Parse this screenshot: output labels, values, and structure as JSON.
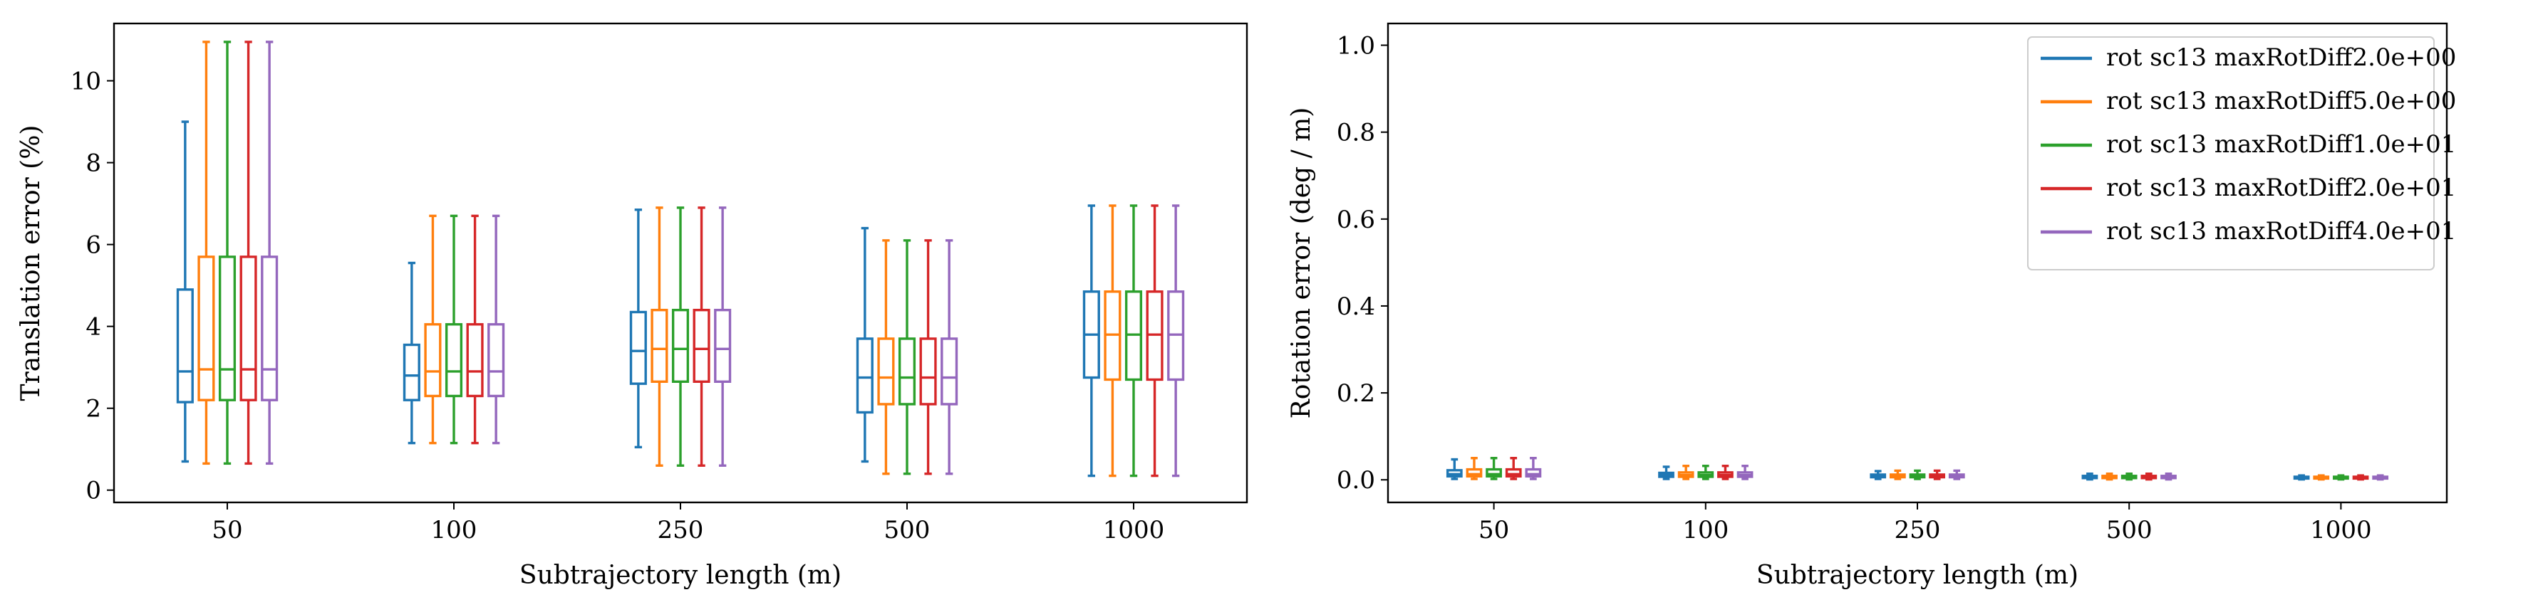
{
  "chart_data": [
    {
      "type": "box",
      "xlabel": "Subtrajectory length (m)",
      "ylabel": "Translation error (%)",
      "ylim": [
        -0.3,
        11.4
      ],
      "yticks": [
        0,
        2,
        4,
        6,
        8,
        10
      ],
      "categories": [
        "50",
        "100",
        "250",
        "500",
        "1000"
      ],
      "grid": false,
      "series": [
        {
          "name": "rot sc13 maxRotDiff2.0e+00",
          "color": "#1f77b4",
          "boxes": [
            {
              "whislo": 0.7,
              "q1": 2.15,
              "med": 2.9,
              "q3": 4.9,
              "whishi": 9.0
            },
            {
              "whislo": 1.15,
              "q1": 2.2,
              "med": 2.8,
              "q3": 3.55,
              "whishi": 5.55
            },
            {
              "whislo": 1.05,
              "q1": 2.6,
              "med": 3.4,
              "q3": 4.35,
              "whishi": 6.85
            },
            {
              "whislo": 0.7,
              "q1": 1.9,
              "med": 2.75,
              "q3": 3.7,
              "whishi": 6.4
            },
            {
              "whislo": 0.35,
              "q1": 2.75,
              "med": 3.8,
              "q3": 4.85,
              "whishi": 6.95
            }
          ]
        },
        {
          "name": "rot sc13 maxRotDiff5.0e+00",
          "color": "#ff7f0e",
          "boxes": [
            {
              "whislo": 0.65,
              "q1": 2.2,
              "med": 2.95,
              "q3": 5.7,
              "whishi": 10.95
            },
            {
              "whislo": 1.15,
              "q1": 2.3,
              "med": 2.9,
              "q3": 4.05,
              "whishi": 6.7
            },
            {
              "whislo": 0.6,
              "q1": 2.65,
              "med": 3.45,
              "q3": 4.4,
              "whishi": 6.9
            },
            {
              "whislo": 0.4,
              "q1": 2.1,
              "med": 2.75,
              "q3": 3.7,
              "whishi": 6.1
            },
            {
              "whislo": 0.35,
              "q1": 2.7,
              "med": 3.8,
              "q3": 4.85,
              "whishi": 6.95
            }
          ]
        },
        {
          "name": "rot sc13 maxRotDiff1.0e+01",
          "color": "#2ca02c",
          "boxes": [
            {
              "whislo": 0.65,
              "q1": 2.2,
              "med": 2.95,
              "q3": 5.7,
              "whishi": 10.95
            },
            {
              "whislo": 1.15,
              "q1": 2.3,
              "med": 2.9,
              "q3": 4.05,
              "whishi": 6.7
            },
            {
              "whislo": 0.6,
              "q1": 2.65,
              "med": 3.45,
              "q3": 4.4,
              "whishi": 6.9
            },
            {
              "whislo": 0.4,
              "q1": 2.1,
              "med": 2.75,
              "q3": 3.7,
              "whishi": 6.1
            },
            {
              "whislo": 0.35,
              "q1": 2.7,
              "med": 3.8,
              "q3": 4.85,
              "whishi": 6.95
            }
          ]
        },
        {
          "name": "rot sc13 maxRotDiff2.0e+01",
          "color": "#d62728",
          "boxes": [
            {
              "whislo": 0.65,
              "q1": 2.2,
              "med": 2.95,
              "q3": 5.7,
              "whishi": 10.95
            },
            {
              "whislo": 1.15,
              "q1": 2.3,
              "med": 2.9,
              "q3": 4.05,
              "whishi": 6.7
            },
            {
              "whislo": 0.6,
              "q1": 2.65,
              "med": 3.45,
              "q3": 4.4,
              "whishi": 6.9
            },
            {
              "whislo": 0.4,
              "q1": 2.1,
              "med": 2.75,
              "q3": 3.7,
              "whishi": 6.1
            },
            {
              "whislo": 0.35,
              "q1": 2.7,
              "med": 3.8,
              "q3": 4.85,
              "whishi": 6.95
            }
          ]
        },
        {
          "name": "rot sc13 maxRotDiff4.0e+01",
          "color": "#9467bd",
          "boxes": [
            {
              "whislo": 0.65,
              "q1": 2.2,
              "med": 2.95,
              "q3": 5.7,
              "whishi": 10.95
            },
            {
              "whislo": 1.15,
              "q1": 2.3,
              "med": 2.9,
              "q3": 4.05,
              "whishi": 6.7
            },
            {
              "whislo": 0.6,
              "q1": 2.65,
              "med": 3.45,
              "q3": 4.4,
              "whishi": 6.9
            },
            {
              "whislo": 0.4,
              "q1": 2.1,
              "med": 2.75,
              "q3": 3.7,
              "whishi": 6.1
            },
            {
              "whislo": 0.35,
              "q1": 2.7,
              "med": 3.8,
              "q3": 4.85,
              "whishi": 6.95
            }
          ]
        }
      ]
    },
    {
      "type": "box",
      "xlabel": "Subtrajectory length (m)",
      "ylabel": "Rotation error (deg / m)",
      "ylim": [
        -0.052,
        1.05
      ],
      "yticks": [
        0.0,
        0.2,
        0.4,
        0.6,
        0.8,
        1.0
      ],
      "categories": [
        "50",
        "100",
        "250",
        "500",
        "1000"
      ],
      "grid": false,
      "legend": "top-right",
      "series": [
        {
          "name": "rot sc13 maxRotDiff2.0e+00",
          "color": "#1f77b4",
          "boxes": [
            {
              "whislo": 0.002,
              "q1": 0.008,
              "med": 0.013,
              "q3": 0.022,
              "whishi": 0.047
            },
            {
              "whislo": 0.002,
              "q1": 0.007,
              "med": 0.011,
              "q3": 0.016,
              "whishi": 0.03
            },
            {
              "whislo": 0.002,
              "q1": 0.006,
              "med": 0.009,
              "q3": 0.012,
              "whishi": 0.02
            },
            {
              "whislo": 0.001,
              "q1": 0.004,
              "med": 0.006,
              "q3": 0.009,
              "whishi": 0.014
            },
            {
              "whislo": 0.001,
              "q1": 0.003,
              "med": 0.005,
              "q3": 0.007,
              "whishi": 0.01
            }
          ]
        },
        {
          "name": "rot sc13 maxRotDiff5.0e+00",
          "color": "#ff7f0e",
          "boxes": [
            {
              "whislo": 0.002,
              "q1": 0.008,
              "med": 0.013,
              "q3": 0.024,
              "whishi": 0.05
            },
            {
              "whislo": 0.002,
              "q1": 0.007,
              "med": 0.011,
              "q3": 0.017,
              "whishi": 0.032
            },
            {
              "whislo": 0.002,
              "q1": 0.006,
              "med": 0.009,
              "q3": 0.012,
              "whishi": 0.021
            },
            {
              "whislo": 0.001,
              "q1": 0.004,
              "med": 0.006,
              "q3": 0.009,
              "whishi": 0.014
            },
            {
              "whislo": 0.001,
              "q1": 0.003,
              "med": 0.005,
              "q3": 0.007,
              "whishi": 0.01
            }
          ]
        },
        {
          "name": "rot sc13 maxRotDiff1.0e+01",
          "color": "#2ca02c",
          "boxes": [
            {
              "whislo": 0.002,
              "q1": 0.008,
              "med": 0.013,
              "q3": 0.024,
              "whishi": 0.05
            },
            {
              "whislo": 0.002,
              "q1": 0.007,
              "med": 0.011,
              "q3": 0.017,
              "whishi": 0.032
            },
            {
              "whislo": 0.002,
              "q1": 0.006,
              "med": 0.009,
              "q3": 0.012,
              "whishi": 0.021
            },
            {
              "whislo": 0.001,
              "q1": 0.004,
              "med": 0.006,
              "q3": 0.009,
              "whishi": 0.014
            },
            {
              "whislo": 0.001,
              "q1": 0.003,
              "med": 0.005,
              "q3": 0.007,
              "whishi": 0.01
            }
          ]
        },
        {
          "name": "rot sc13 maxRotDiff2.0e+01",
          "color": "#d62728",
          "boxes": [
            {
              "whislo": 0.002,
              "q1": 0.008,
              "med": 0.013,
              "q3": 0.024,
              "whishi": 0.05
            },
            {
              "whislo": 0.002,
              "q1": 0.007,
              "med": 0.011,
              "q3": 0.017,
              "whishi": 0.032
            },
            {
              "whislo": 0.002,
              "q1": 0.006,
              "med": 0.009,
              "q3": 0.012,
              "whishi": 0.021
            },
            {
              "whislo": 0.001,
              "q1": 0.004,
              "med": 0.006,
              "q3": 0.009,
              "whishi": 0.014
            },
            {
              "whislo": 0.001,
              "q1": 0.003,
              "med": 0.005,
              "q3": 0.007,
              "whishi": 0.01
            }
          ]
        },
        {
          "name": "rot sc13 maxRotDiff4.0e+01",
          "color": "#9467bd",
          "boxes": [
            {
              "whislo": 0.002,
              "q1": 0.008,
              "med": 0.013,
              "q3": 0.024,
              "whishi": 0.05
            },
            {
              "whislo": 0.002,
              "q1": 0.007,
              "med": 0.011,
              "q3": 0.017,
              "whishi": 0.032
            },
            {
              "whislo": 0.002,
              "q1": 0.006,
              "med": 0.009,
              "q3": 0.012,
              "whishi": 0.021
            },
            {
              "whislo": 0.001,
              "q1": 0.004,
              "med": 0.006,
              "q3": 0.009,
              "whishi": 0.014
            },
            {
              "whislo": 0.001,
              "q1": 0.003,
              "med": 0.005,
              "q3": 0.007,
              "whishi": 0.01
            }
          ]
        }
      ]
    }
  ]
}
